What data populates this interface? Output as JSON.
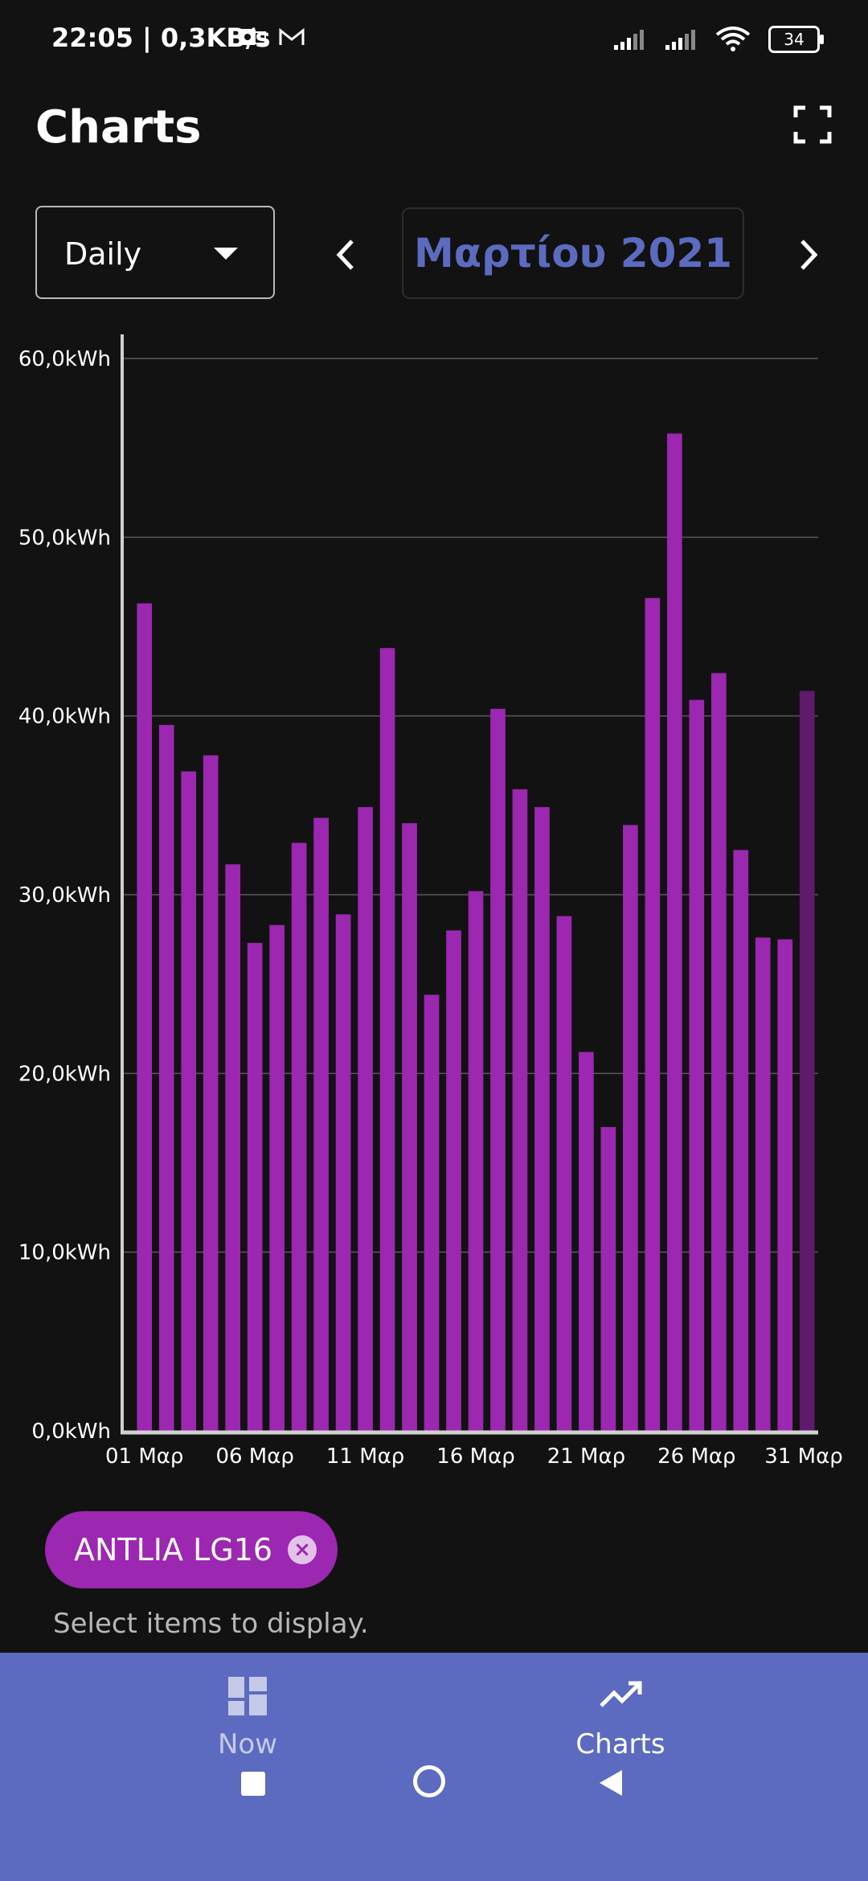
{
  "status_bar": {
    "time": "22:05 | 0,3KB/s",
    "battery": "34"
  },
  "header": {
    "title": "Charts"
  },
  "controls": {
    "period_selected": "Daily",
    "month_label": "Μαρτίου 2021"
  },
  "chart_data": {
    "type": "bar",
    "ylabel": "",
    "xlabel": "",
    "ylim": [
      0,
      60
    ],
    "yticks": [
      "0,0kWh",
      "10,0kWh",
      "20,0kWh",
      "30,0kWh",
      "40,0kWh",
      "50,0kWh",
      "60,0kWh"
    ],
    "xticks": [
      {
        "day": 1,
        "label": "01 Μαρ"
      },
      {
        "day": 6,
        "label": "06 Μαρ"
      },
      {
        "day": 11,
        "label": "11 Μαρ"
      },
      {
        "day": 16,
        "label": "16 Μαρ"
      },
      {
        "day": 21,
        "label": "21 Μαρ"
      },
      {
        "day": 26,
        "label": "26 Μαρ"
      },
      {
        "day": 31,
        "label": "31 Μαρ"
      }
    ],
    "days": [
      1,
      2,
      3,
      4,
      5,
      6,
      7,
      8,
      9,
      10,
      11,
      12,
      13,
      14,
      15,
      16,
      17,
      18,
      19,
      20,
      21,
      22,
      23,
      24,
      25,
      26,
      27,
      28,
      29,
      30,
      31
    ],
    "values": [
      46.3,
      39.5,
      36.9,
      37.8,
      31.7,
      27.3,
      28.3,
      32.9,
      34.3,
      28.9,
      34.9,
      43.8,
      34.0,
      24.4,
      28.0,
      30.2,
      40.4,
      35.9,
      34.9,
      28.8,
      21.2,
      17.0,
      33.9,
      46.6,
      55.8,
      40.9,
      42.4,
      32.5,
      27.6,
      27.5,
      41.4
    ],
    "bar_color": "#9c27b0",
    "last_bar_color": "#5e1a6b",
    "grid": true
  },
  "chip": {
    "label": "ANTLIA LG16"
  },
  "hint": "Select items to display.",
  "bottom_nav": {
    "items": [
      {
        "label": "Now",
        "icon": "dashboard-icon"
      },
      {
        "label": "Charts",
        "icon": "trending-up-icon"
      }
    ],
    "accent": "#5c6bc0"
  }
}
